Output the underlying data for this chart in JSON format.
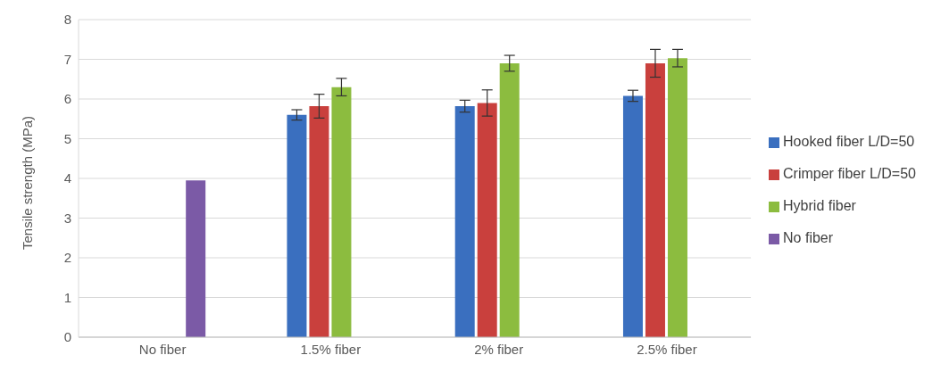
{
  "chart_data": {
    "type": "bar",
    "ylabel": "Tensile strength (MPa)",
    "categories": [
      "No fiber",
      "1.5% fiber",
      "2% fiber",
      "2.5% fiber"
    ],
    "series": [
      {
        "name": "Hooked fiber L/D=50",
        "color": "#3a6fbf",
        "values": [
          null,
          5.6,
          5.82,
          6.08
        ],
        "errors": [
          null,
          0.13,
          0.15,
          0.14
        ]
      },
      {
        "name": "Crimper fiber L/D=50",
        "color": "#c9403d",
        "values": [
          null,
          5.82,
          5.9,
          6.9
        ],
        "errors": [
          null,
          0.3,
          0.33,
          0.35
        ]
      },
      {
        "name": "Hybrid fiber",
        "color": "#8cbc3f",
        "values": [
          null,
          6.3,
          6.9,
          7.03
        ],
        "errors": [
          null,
          0.22,
          0.2,
          0.22
        ]
      },
      {
        "name": "No fiber",
        "color": "#7b5aa6",
        "values": [
          3.95,
          null,
          null,
          null
        ]
      }
    ],
    "ylim": [
      0,
      8
    ],
    "yticks": [
      0,
      1,
      2,
      3,
      4,
      5,
      6,
      7,
      8
    ],
    "grid": "y",
    "legend": "right"
  }
}
